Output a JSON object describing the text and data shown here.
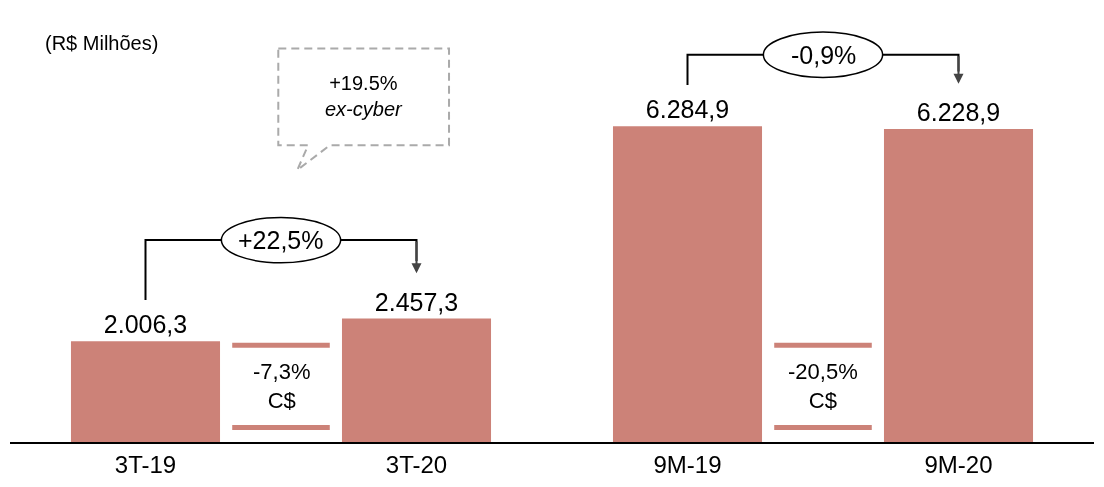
{
  "chart_data": {
    "type": "bar",
    "categories": [
      "3T-19",
      "3T-20",
      "9M-19",
      "9M-20"
    ],
    "values": [
      2006.3,
      2457.3,
      6284.9,
      6228.9
    ],
    "value_labels": [
      "2.006,3",
      "2.457,3",
      "6.284,9",
      "6.228,9"
    ],
    "color": "#cc8278",
    "tick_labels": "x",
    "grid": false,
    "legend": false,
    "annotations": [
      "(R$ Milhões)",
      "+19.5%\nex-cyber",
      "+22,5%",
      "-0,9%",
      "-7,3%\nC$",
      "-20,5%\nC$"
    ]
  }
}
